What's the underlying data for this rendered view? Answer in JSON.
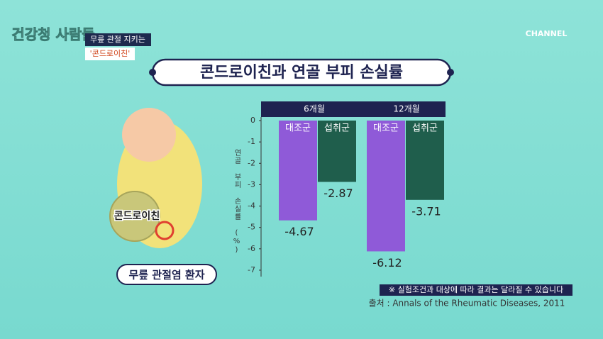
{
  "header": {
    "show_title": "건강청 사람들",
    "caption_line1": "무릎 관절 지키는",
    "caption_line2": "'콘드로이친'",
    "channel": "CHANNEL"
  },
  "illustration": {
    "label": "콘드로이친",
    "patient": "무릎 관절염 환자"
  },
  "chart_data": {
    "type": "bar",
    "title": "콘드로이친과 연골 부피 손실률",
    "categories": [
      "6개월",
      "12개월"
    ],
    "series": [
      {
        "name": "대조군",
        "color": "#8f5ad8",
        "values": [
          -4.67,
          -6.12
        ]
      },
      {
        "name": "섭취군",
        "color": "#1f5e4c",
        "values": [
          -2.87,
          -3.71
        ]
      }
    ],
    "y_label": "연골 부피 손실률 (%)",
    "ylim": [
      -7.3,
      0
    ],
    "yticks": [
      0,
      -1,
      -2,
      -3,
      -4,
      -5,
      -6,
      -7
    ]
  },
  "footer": {
    "note": "※ 실험조건과 대상에 따라 결과는 달라질 수 있습니다",
    "source": "출처 : Annals of the Rheumatic Diseases, 2011"
  }
}
